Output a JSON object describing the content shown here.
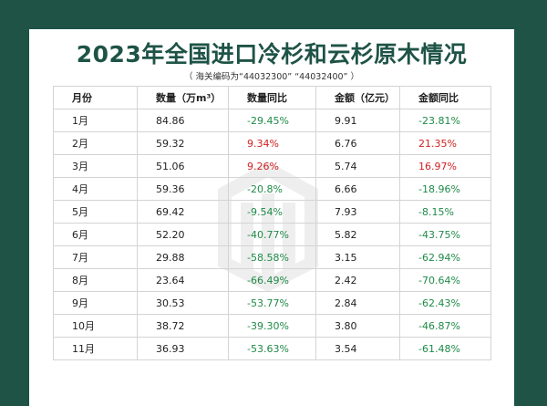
{
  "title": "2023年全国进口冷杉和云杉原木情况",
  "subtitle": "（ 海关编码为“44032300”  “44032400” ）",
  "table": {
    "headers": [
      "月份",
      "数量（万m³）",
      "数量同比",
      "金额（亿元）",
      "金额同比"
    ],
    "rows": [
      {
        "month": "1月",
        "qty": "84.86",
        "qty_yoy": "-29.45%",
        "amt": "9.91",
        "amt_yoy": "-23.81%"
      },
      {
        "month": "2月",
        "qty": "59.32",
        "qty_yoy": "9.34%",
        "amt": "6.76",
        "amt_yoy": "21.35%"
      },
      {
        "month": "3月",
        "qty": "51.06",
        "qty_yoy": "9.26%",
        "amt": "5.74",
        "amt_yoy": "16.97%"
      },
      {
        "month": "4月",
        "qty": "59.36",
        "qty_yoy": "-20.8%",
        "amt": "6.66",
        "amt_yoy": "-18.96%"
      },
      {
        "month": "5月",
        "qty": "69.42",
        "qty_yoy": "-9.54%",
        "amt": "7.93",
        "amt_yoy": "-8.15%"
      },
      {
        "month": "6月",
        "qty": "52.20",
        "qty_yoy": "-40.77%",
        "amt": "5.82",
        "amt_yoy": "-43.75%"
      },
      {
        "month": "7月",
        "qty": "29.88",
        "qty_yoy": "-58.58%",
        "amt": "3.15",
        "amt_yoy": "-62.94%"
      },
      {
        "month": "8月",
        "qty": "23.64",
        "qty_yoy": "-66.49%",
        "amt": "2.42",
        "amt_yoy": "-70.64%"
      },
      {
        "month": "9月",
        "qty": "30.53",
        "qty_yoy": "-53.77%",
        "amt": "2.84",
        "amt_yoy": "-62.43%"
      },
      {
        "month": "10月",
        "qty": "38.72",
        "qty_yoy": "-39.30%",
        "amt": "3.80",
        "amt_yoy": "-46.87%"
      },
      {
        "month": "11月",
        "qty": "36.93",
        "qty_yoy": "-53.63%",
        "amt": "3.54",
        "amt_yoy": "-61.48%"
      }
    ]
  },
  "colors": {
    "background": "#1e5346",
    "title": "#1e5346",
    "negative": "#1f8a47",
    "positive": "#d11f1f"
  },
  "watermark_icon": "logo-watermark-icon"
}
